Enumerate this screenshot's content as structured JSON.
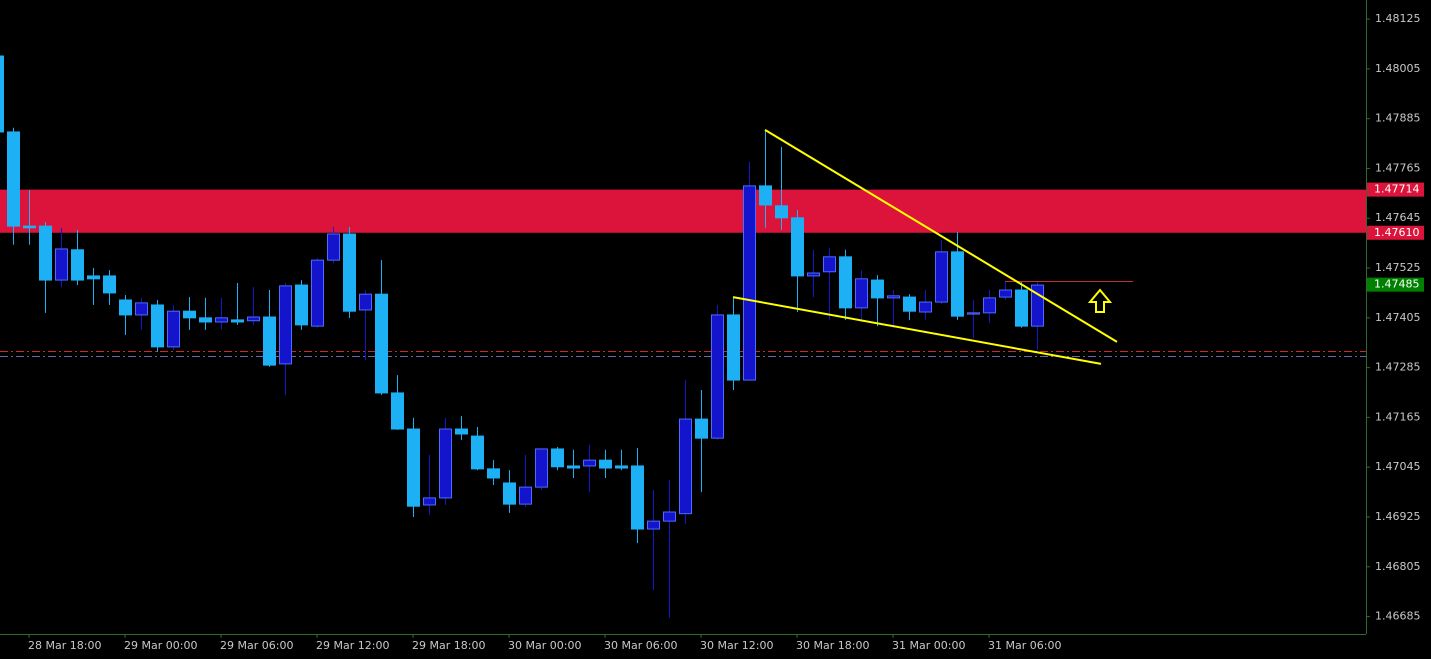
{
  "chart_data": {
    "type": "candlestick",
    "categories": [
      null,
      null,
      "28 Mar 18:00",
      null,
      null,
      null,
      null,
      null,
      "29 Mar 00:00",
      null,
      null,
      null,
      null,
      null,
      "29 Mar 06:00",
      null,
      null,
      null,
      null,
      null,
      "29 Mar 12:00",
      null,
      null,
      null,
      null,
      null,
      "29 Mar 18:00",
      null,
      null,
      null,
      null,
      null,
      "30 Mar 00:00",
      null,
      null,
      null,
      null,
      null,
      "30 Mar 06:00",
      null,
      null,
      null,
      null,
      null,
      "30 Mar 12:00",
      null,
      null,
      null,
      null,
      null,
      "30 Mar 18:00",
      null,
      null,
      null,
      null,
      null,
      "31 Mar 00:00",
      null,
      null,
      null,
      null,
      null,
      "31 Mar 06:00",
      null,
      null,
      null
    ],
    "open": [
      1.48036,
      1.47853,
      1.47626,
      1.47626,
      1.47496,
      1.47569,
      1.47506,
      1.47506,
      1.47448,
      1.47412,
      1.47436,
      1.47335,
      1.47421,
      1.47405,
      1.47395,
      1.474,
      1.47398,
      1.47407,
      1.47294,
      1.47484,
      1.47385,
      1.47544,
      1.47607,
      1.47424,
      1.47462,
      1.47224,
      1.47137,
      1.46954,
      1.46971,
      1.47137,
      1.4712,
      1.47041,
      1.47007,
      1.46956,
      1.46997,
      1.47089,
      1.47048,
      1.47048,
      1.47062,
      1.47048,
      1.47048,
      1.46896,
      1.46915,
      1.46933,
      1.47161,
      1.47115,
      1.47412,
      1.47255,
      1.47723,
      1.47675,
      1.47646,
      1.47506,
      1.47516,
      1.47552,
      1.47429,
      1.47496,
      1.47453,
      1.47455,
      1.47419,
      1.47443,
      1.47564,
      1.47414,
      1.47417,
      1.47455,
      1.47472,
      1.47385
    ],
    "high": [
      1.48038,
      1.47863,
      1.47713,
      1.47636,
      1.47622,
      1.47617,
      1.47525,
      1.4752,
      1.4746,
      1.47453,
      1.47448,
      1.47436,
      1.47455,
      1.47453,
      1.47453,
      1.47489,
      1.47479,
      1.47472,
      1.47489,
      1.47496,
      1.47549,
      1.47624,
      1.47624,
      1.47472,
      1.47544,
      1.47267,
      1.47164,
      1.47075,
      1.47164,
      1.47168,
      1.47142,
      1.47062,
      1.47038,
      1.47075,
      1.47091,
      1.47094,
      1.47087,
      1.47099,
      1.47087,
      1.47087,
      1.47091,
      1.4699,
      1.47014,
      1.47255,
      1.47231,
      1.47436,
      1.47453,
      1.47781,
      1.47858,
      1.47817,
      1.47665,
      1.47569,
      1.47573,
      1.47569,
      1.4752,
      1.47508,
      1.47472,
      1.47462,
      1.47472,
      1.47593,
      1.47612,
      1.47448,
      1.47472,
      1.47491,
      1.47491,
      1.47491
    ],
    "low": [
      1.47846,
      1.47581,
      1.47581,
      1.47417,
      1.47479,
      1.47484,
      1.47436,
      1.47436,
      1.47364,
      1.47376,
      1.47323,
      1.47327,
      1.47376,
      1.47376,
      1.47376,
      1.47388,
      1.47388,
      1.47287,
      1.47219,
      1.47376,
      1.47381,
      1.47537,
      1.47405,
      1.47303,
      1.47219,
      1.47135,
      1.46925,
      1.4693,
      1.46954,
      1.47111,
      1.47038,
      1.47002,
      1.46935,
      1.46949,
      1.4699,
      1.47038,
      1.47019,
      1.46985,
      1.47019,
      1.47038,
      1.46862,
      1.46749,
      1.46682,
      1.46908,
      1.46985,
      1.47111,
      1.47231,
      1.47255,
      1.47622,
      1.47617,
      1.47419,
      1.47455,
      1.474,
      1.474,
      1.47395,
      1.47385,
      1.47381,
      1.474,
      1.474,
      1.47438,
      1.474,
      1.47356,
      1.47393,
      1.47448,
      1.47381,
      1.47327
    ],
    "close": [
      1.47853,
      1.47626,
      1.47622,
      1.47496,
      1.47571,
      1.47496,
      1.47499,
      1.47465,
      1.47412,
      1.47441,
      1.47335,
      1.47421,
      1.47405,
      1.47395,
      1.47405,
      1.47395,
      1.47407,
      1.47291,
      1.47482,
      1.47388,
      1.47544,
      1.47607,
      1.47421,
      1.47462,
      1.47224,
      1.47137,
      1.46951,
      1.46971,
      1.47137,
      1.47125,
      1.47041,
      1.47019,
      1.46956,
      1.46997,
      1.47089,
      1.47046,
      1.47043,
      1.47062,
      1.47043,
      1.47043,
      1.46896,
      1.46915,
      1.46937,
      1.47161,
      1.47115,
      1.47412,
      1.47255,
      1.47723,
      1.47677,
      1.47646,
      1.47506,
      1.47513,
      1.47552,
      1.47429,
      1.47499,
      1.47453,
      1.47458,
      1.47421,
      1.47443,
      1.47564,
      1.47409,
      1.47417,
      1.47453,
      1.47472,
      1.47385,
      1.47484
    ],
    "bull_color": "#1414cc",
    "bear_color": "#1eb0f5",
    "ylim": [
      1.46643,
      1.48171
    ],
    "yticks": [
      1.48125,
      1.48005,
      1.47885,
      1.47765,
      1.47645,
      1.47525,
      1.47405,
      1.47285,
      1.47165,
      1.47045,
      1.46925,
      1.46805,
      1.46685
    ],
    "zone": {
      "from": 1.47714,
      "to": 1.4761,
      "color": "#dc143c"
    },
    "price_labels": [
      {
        "value": 1.47714,
        "label": "1.47714",
        "color": "#dc143c"
      },
      {
        "value": 1.4761,
        "label": "1.47610",
        "color": "#dc143c"
      },
      {
        "value": 1.47485,
        "label": "1.47485",
        "color": "#008000"
      }
    ],
    "hlines": [
      {
        "value": 1.47325,
        "color": "#d02828"
      },
      {
        "value": 1.47313,
        "color": "#6a6aa8"
      }
    ],
    "level": {
      "value": 1.47494,
      "from": 63,
      "to": 71,
      "color": "#c03030"
    },
    "trendlines": [
      {
        "x": [
          48,
          70
        ],
        "y": [
          1.47858,
          1.47347
        ],
        "color": "#ffff00"
      },
      {
        "x": [
          46,
          69
        ],
        "y": [
          1.47455,
          1.47294
        ],
        "color": "#ffff00"
      }
    ]
  }
}
